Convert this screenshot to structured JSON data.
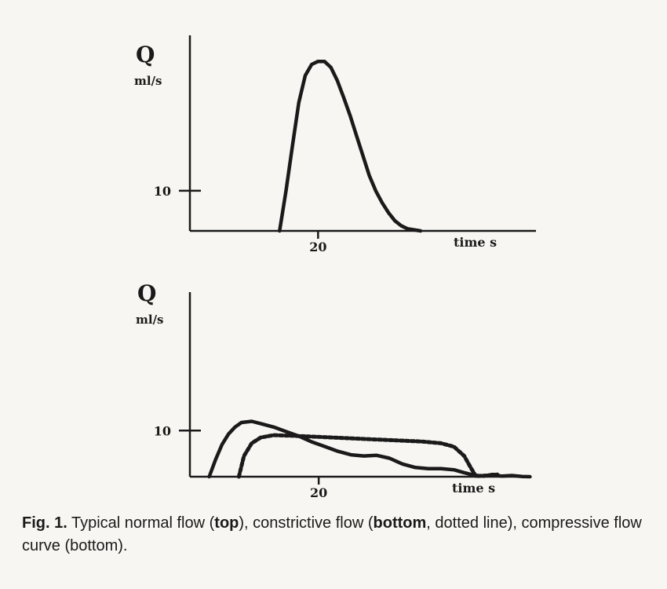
{
  "chart_data": [
    {
      "type": "line",
      "ylabel": "Q",
      "yunit": "ml/s",
      "xlabel": "time s",
      "xlim": [
        10,
        37
      ],
      "ylim": [
        6,
        25.5
      ],
      "x_ticks": [
        20
      ],
      "y_ticks": [
        10
      ],
      "series": [
        {
          "style": "solid",
          "points": [
            [
              17.0,
              6.0
            ],
            [
              17.5,
              10.0
            ],
            [
              18.0,
              14.5
            ],
            [
              18.5,
              18.8
            ],
            [
              19.0,
              21.5
            ],
            [
              19.5,
              22.6
            ],
            [
              20.0,
              22.9
            ],
            [
              20.5,
              22.9
            ],
            [
              21.0,
              22.3
            ],
            [
              21.5,
              21.0
            ],
            [
              22.0,
              19.3
            ],
            [
              22.5,
              17.5
            ],
            [
              23.0,
              15.5
            ],
            [
              23.5,
              13.5
            ],
            [
              24.0,
              11.5
            ],
            [
              24.5,
              10.0
            ],
            [
              25.0,
              8.8
            ],
            [
              25.5,
              7.8
            ],
            [
              26.0,
              7.0
            ],
            [
              26.5,
              6.5
            ],
            [
              27.0,
              6.2
            ],
            [
              28.0,
              6.0
            ]
          ]
        }
      ]
    },
    {
      "type": "line",
      "ylabel": "Q",
      "yunit": "ml/s",
      "xlabel": "time s",
      "xlim": [
        10,
        36.5
      ],
      "ylim": [
        6,
        22
      ],
      "x_ticks": [
        20
      ],
      "y_ticks": [
        10
      ],
      "series": [
        {
          "style": "solid",
          "points": [
            [
              11.5,
              6.0
            ],
            [
              12.0,
              7.5
            ],
            [
              12.5,
              8.8
            ],
            [
              13.0,
              9.7
            ],
            [
              13.5,
              10.3
            ],
            [
              14.0,
              10.7
            ],
            [
              14.8,
              10.8
            ],
            [
              15.5,
              10.6
            ],
            [
              16.5,
              10.3
            ],
            [
              17.5,
              9.9
            ],
            [
              18.5,
              9.5
            ],
            [
              19.5,
              9.0
            ],
            [
              20.5,
              8.6
            ],
            [
              21.5,
              8.2
            ],
            [
              22.5,
              7.9
            ],
            [
              23.5,
              7.8
            ],
            [
              24.5,
              7.85
            ],
            [
              25.5,
              7.6
            ],
            [
              26.5,
              7.1
            ],
            [
              27.5,
              6.8
            ],
            [
              28.5,
              6.7
            ],
            [
              29.5,
              6.7
            ],
            [
              30.5,
              6.6
            ],
            [
              31.3,
              6.35
            ],
            [
              32.0,
              6.15
            ],
            [
              32.8,
              6.05
            ],
            [
              33.5,
              6.2
            ],
            [
              34.2,
              6.05
            ],
            [
              35.0,
              6.1
            ],
            [
              35.8,
              6.02
            ],
            [
              36.4,
              6.0
            ]
          ]
        },
        {
          "style": "dotted",
          "points": [
            [
              13.8,
              6.0
            ],
            [
              14.2,
              7.8
            ],
            [
              14.8,
              8.9
            ],
            [
              15.5,
              9.4
            ],
            [
              16.5,
              9.6
            ],
            [
              18.0,
              9.55
            ],
            [
              20.0,
              9.45
            ],
            [
              22.0,
              9.35
            ],
            [
              24.0,
              9.25
            ],
            [
              26.0,
              9.15
            ],
            [
              28.0,
              9.05
            ],
            [
              29.5,
              8.9
            ],
            [
              30.5,
              8.6
            ],
            [
              31.3,
              7.8
            ],
            [
              31.8,
              6.8
            ],
            [
              32.2,
              6.05
            ],
            [
              33.0,
              6.1
            ],
            [
              34.0,
              6.2
            ]
          ]
        }
      ]
    }
  ],
  "caption": {
    "fig_label": "Fig. 1.",
    "part1": " Typical normal flow (",
    "top_bold": "top",
    "part2": "), constrictive flow (",
    "bottom_bold": "bottom",
    "part3": ", dotted line), compressive flow curve (bottom)."
  }
}
